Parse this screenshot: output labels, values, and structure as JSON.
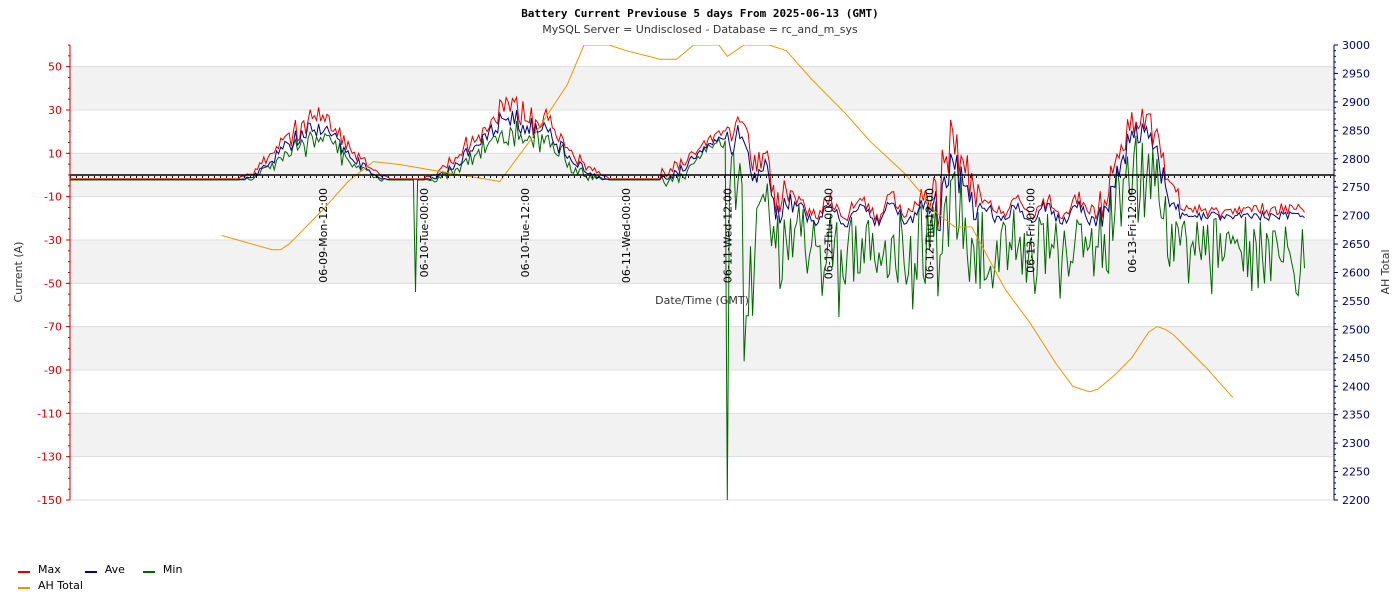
{
  "chart_data": {
    "type": "line",
    "title": "Battery Current Previouse 5 days From 2025-06-13 (GMT)",
    "subtitle": "MySQL Server = Undisclosed - Database = rc_and_m_sys",
    "xlabel": "Date/Time (GMT)",
    "ylabel": "Current (A)",
    "y2label": "AH Total",
    "ylim": [
      -150,
      60
    ],
    "y2lim": [
      2200,
      3000
    ],
    "yticks": [
      "-150",
      "-130",
      "-110",
      "-90",
      "-70",
      "-50",
      "-30",
      "-10",
      "10",
      "30",
      "50"
    ],
    "y2ticks": [
      "2200",
      "2250",
      "2300",
      "2350",
      "2400",
      "2450",
      "2500",
      "2550",
      "2600",
      "2650",
      "2700",
      "2750",
      "2800",
      "2850",
      "2900",
      "2950",
      "3000"
    ],
    "xlim_hours": [
      -30,
      120
    ],
    "xticks": [
      {
        "label": "06-09-Mon-12:00",
        "hour": 0
      },
      {
        "label": "06-10-Tue-00:00",
        "hour": 12
      },
      {
        "label": "06-10-Tue-12:00",
        "hour": 24
      },
      {
        "label": "06-11-Wed-00:00",
        "hour": 36
      },
      {
        "label": "06-11-Wed-12:00",
        "hour": 48
      },
      {
        "label": "06-12-Thu-00:00",
        "hour": 60
      },
      {
        "label": "06-12-Thu-12:00",
        "hour": 72
      },
      {
        "label": "06-13-Fri-00:00",
        "hour": 84
      },
      {
        "label": "06-13-Fri-12:00",
        "hour": 96
      }
    ],
    "zero_line": 0,
    "grid": true,
    "legend_position": "bottom-left",
    "series": [
      {
        "name": "Max",
        "color": "#dd0000",
        "axis": "left"
      },
      {
        "name": "Ave",
        "color": "#000080",
        "axis": "left"
      },
      {
        "name": "Min",
        "color": "#006600",
        "axis": "left"
      },
      {
        "name": "AH Total",
        "color": "#e69900",
        "axis": "right",
        "points": [
          [
            -12,
            2665
          ],
          [
            -6,
            2640
          ],
          [
            -5,
            2640
          ],
          [
            -4,
            2650
          ],
          [
            -2,
            2680
          ],
          [
            0,
            2710
          ],
          [
            3,
            2760
          ],
          [
            6,
            2795
          ],
          [
            9,
            2790
          ],
          [
            15,
            2775
          ],
          [
            21,
            2760
          ],
          [
            25,
            2840
          ],
          [
            29,
            2930
          ],
          [
            31,
            3000
          ],
          [
            34,
            3000
          ],
          [
            36,
            2990
          ],
          [
            40,
            2975
          ],
          [
            42,
            2975
          ],
          [
            44,
            3000
          ],
          [
            47,
            3000
          ],
          [
            48,
            2980
          ],
          [
            50,
            3000
          ],
          [
            53,
            3000
          ],
          [
            55,
            2990
          ],
          [
            58,
            2940
          ],
          [
            62,
            2880
          ],
          [
            65,
            2830
          ],
          [
            69,
            2775
          ],
          [
            71,
            2740
          ],
          [
            72,
            2715
          ],
          [
            75,
            2680
          ],
          [
            77,
            2680
          ],
          [
            79,
            2625
          ],
          [
            81,
            2570
          ],
          [
            84,
            2510
          ],
          [
            87,
            2440
          ],
          [
            89,
            2400
          ],
          [
            90,
            2395
          ],
          [
            91,
            2390
          ],
          [
            92,
            2395
          ],
          [
            94,
            2420
          ],
          [
            96,
            2450
          ],
          [
            98,
            2495
          ],
          [
            99,
            2505
          ],
          [
            100,
            2500
          ],
          [
            101,
            2490
          ],
          [
            103,
            2460
          ],
          [
            105,
            2430
          ],
          [
            108,
            2380
          ]
        ]
      }
    ]
  }
}
